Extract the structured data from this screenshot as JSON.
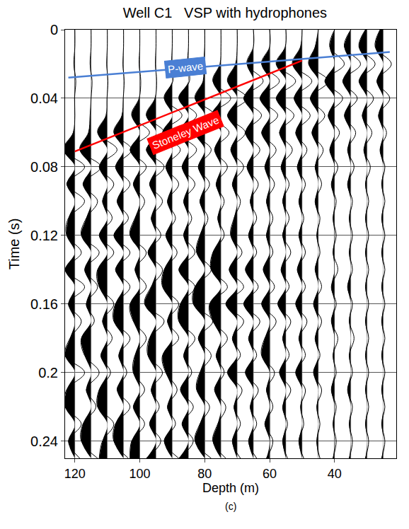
{
  "chart_data": {
    "type": "wiggle",
    "title": "Well C1   VSP with hydrophones",
    "x_label": "Depth (m)",
    "y_label": "Time (s)",
    "caption": "(c)",
    "xlim": [
      123,
      21
    ],
    "xticks": [
      120,
      100,
      80,
      60,
      40
    ],
    "ylim": [
      0.25,
      0
    ],
    "yticks": [
      0,
      0.04,
      0.08,
      0.12,
      0.16,
      0.2,
      0.24
    ],
    "grid": true,
    "color": "#000000",
    "time": [
      0,
      0.01,
      0.02,
      0.03,
      0.04,
      0.05,
      0.06,
      0.07,
      0.08,
      0.09,
      0.1,
      0.11,
      0.12,
      0.13,
      0.14,
      0.15,
      0.16,
      0.17,
      0.18,
      0.19,
      0.2,
      0.21,
      0.22,
      0.23,
      0.24,
      0.25
    ],
    "traces": [
      {
        "depth": 120,
        "values": [
          0,
          0,
          0.3,
          -0.3,
          0.1,
          0,
          0.5,
          3.5,
          -3,
          2.5,
          -3,
          2,
          2.5,
          -2,
          3,
          -3,
          2,
          -2,
          1.5,
          3,
          -3,
          2.5,
          3,
          -2,
          2,
          -1.5
        ]
      },
      {
        "depth": 115,
        "values": [
          0,
          0,
          0.3,
          -0.3,
          0,
          0.3,
          0.8,
          3.5,
          -3,
          2.5,
          -2,
          1.5,
          3,
          -2.5,
          2,
          -2,
          1.5,
          -1,
          3,
          2,
          -2.5,
          1.5,
          -1.5,
          2.5,
          3,
          -2
        ]
      },
      {
        "depth": 110,
        "values": [
          0,
          0,
          0.2,
          -0.2,
          0.1,
          0.4,
          3,
          -3,
          2.5,
          -2,
          1.5,
          -1.5,
          2.5,
          -2,
          3,
          2.5,
          -2,
          1.5,
          -1.5,
          2,
          -1,
          2.5,
          3,
          -2,
          1.5,
          2.5
        ]
      },
      {
        "depth": 105,
        "values": [
          0,
          0,
          0.2,
          -0.2,
          0.1,
          0.5,
          3,
          -2.5,
          2.5,
          -2,
          2,
          -1.5,
          3,
          -2,
          2.5,
          -2,
          2.5,
          3,
          -2,
          1.5,
          -1,
          2,
          -2,
          2.5,
          3,
          -1.5
        ]
      },
      {
        "depth": 100,
        "values": [
          0,
          0,
          0.2,
          -0.3,
          0.2,
          2.5,
          -3,
          3,
          -2,
          2,
          -1.5,
          1.5,
          3,
          -2,
          1.5,
          -2,
          3,
          2,
          -2,
          1.5,
          2,
          -1.5,
          2,
          -1.5,
          2.5,
          3
        ]
      },
      {
        "depth": 95,
        "values": [
          0,
          0,
          0.2,
          -0.2,
          0.3,
          3,
          -2.5,
          3,
          -2.5,
          2,
          -2,
          1.5,
          -1.5,
          2.5,
          -2,
          1.5,
          3.5,
          -2.5,
          2,
          2.5,
          -2,
          1.5,
          -1,
          2,
          -1.5,
          3
        ]
      },
      {
        "depth": 90,
        "values": [
          0,
          0,
          0.2,
          -0.2,
          2.5,
          -3,
          3,
          -2.5,
          2,
          -2,
          1.5,
          -1,
          2,
          -1.5,
          2.5,
          3,
          -2,
          1.5,
          -2,
          3,
          2,
          -1.5,
          1.5,
          -1,
          2.5,
          -2
        ]
      },
      {
        "depth": 85,
        "values": [
          0,
          0,
          0.3,
          -0.3,
          3,
          -2.5,
          3,
          -2.5,
          2,
          -2,
          1.5,
          -1,
          1.5,
          -2,
          3,
          -2,
          2.5,
          3,
          -2,
          1.5,
          -1,
          2.5,
          -1.5,
          2,
          -1.5,
          3
        ]
      },
      {
        "depth": 80,
        "values": [
          0,
          0,
          0.3,
          0.5,
          3,
          -3,
          3,
          -2,
          2,
          -1.5,
          1.5,
          -1,
          1.5,
          2.5,
          -2,
          3,
          3.5,
          -2.5,
          2,
          -2,
          1.5,
          2.5,
          -1.5,
          1.5,
          3,
          -2
        ]
      },
      {
        "depth": 75,
        "values": [
          0,
          0,
          0.3,
          2.5,
          -3,
          3,
          -2.5,
          2,
          -2,
          1.5,
          -1,
          1,
          -1,
          2.5,
          3,
          -2,
          3.5,
          2.5,
          -2,
          1.5,
          -1,
          2,
          -1.5,
          1,
          2.5,
          -1.5
        ]
      },
      {
        "depth": 70,
        "values": [
          0,
          0,
          0.5,
          3,
          -3,
          3,
          -2.5,
          2,
          -2,
          1.5,
          -1,
          1,
          2,
          -1.5,
          2.5,
          -2,
          3.5,
          -2,
          1.5,
          -1,
          3,
          -1.5,
          1,
          -1,
          1.5,
          -1
        ]
      },
      {
        "depth": 65,
        "values": [
          0,
          0,
          2,
          -3,
          3,
          -2.5,
          2.5,
          -2,
          2,
          -1.5,
          1,
          -1,
          1.5,
          -1,
          2.5,
          -1.5,
          3,
          -2,
          1.5,
          -1,
          2.5,
          -1.5,
          1,
          -1,
          1.5,
          -1
        ]
      },
      {
        "depth": 60,
        "values": [
          0,
          0,
          2.5,
          -3,
          3,
          -2.5,
          2.5,
          -2,
          1.5,
          -1.5,
          1,
          -1,
          1,
          -1,
          2,
          -1.5,
          2.5,
          -2,
          1.5,
          2.5,
          -1.5,
          1,
          -1,
          1.5,
          -1,
          1
        ]
      },
      {
        "depth": 55,
        "values": [
          0,
          0.2,
          3,
          -3,
          3,
          -2.5,
          2,
          -2,
          1.5,
          -1,
          1,
          -1,
          1,
          -1.5,
          1.5,
          -1,
          2.5,
          -1.5,
          1,
          -1,
          2,
          -1.5,
          1,
          -0.5,
          1,
          -0.5
        ]
      },
      {
        "depth": 50,
        "values": [
          0,
          0.5,
          3,
          -3,
          2.5,
          -2.5,
          2,
          -1.5,
          1.5,
          -1,
          1,
          -0.5,
          1,
          -1,
          1.5,
          -1,
          2,
          -1.5,
          1,
          -1,
          2,
          -1,
          0.5,
          -0.5,
          1,
          -0.5
        ]
      },
      {
        "depth": 45,
        "values": [
          0,
          1,
          3,
          -3,
          2.5,
          -2,
          2,
          -1.5,
          1,
          -1,
          1,
          -0.5,
          0.5,
          -0.5,
          1,
          -1,
          1.5,
          -1,
          1,
          -0.5,
          1.5,
          -1,
          0.5,
          -0.5,
          0.5,
          -0.5
        ]
      },
      {
        "depth": 40,
        "values": [
          0,
          1.5,
          -3,
          3,
          -2.5,
          2,
          -1.5,
          1.5,
          -1,
          1,
          -0.5,
          0.5,
          -0.5,
          0.5,
          -1,
          1,
          -0.5,
          1,
          -1,
          0.5,
          -0.5,
          1,
          -0.5,
          0.5,
          -0.5,
          0.5
        ]
      },
      {
        "depth": 35,
        "values": [
          0,
          2,
          -3,
          2.5,
          -2,
          2,
          -1.5,
          1,
          -1,
          1,
          -0.5,
          0.5,
          -0.5,
          0.5,
          -0.5,
          1,
          -0.5,
          0.5,
          -1,
          0.5,
          -0.5,
          1,
          -0.5,
          0.5,
          -0.5,
          0.5
        ]
      },
      {
        "depth": 30,
        "values": [
          0.5,
          2.5,
          -2.5,
          2.5,
          -2,
          1.5,
          -1.5,
          1,
          -1,
          0.5,
          -0.5,
          0.5,
          -0.5,
          0.5,
          -0.5,
          0.5,
          -0.5,
          0.5,
          -0.5,
          0.5,
          -0.5,
          0.5,
          -0.5,
          0.5,
          -0.5,
          0.5
        ]
      },
      {
        "depth": 25,
        "values": [
          1,
          2.5,
          -2.5,
          2,
          -2,
          1.5,
          -1,
          1,
          -0.5,
          0.5,
          -0.5,
          0.5,
          -0.5,
          0.5,
          -0.5,
          0.5,
          -0.5,
          0.5,
          -0.5,
          0.5,
          -0.5,
          0.5,
          -0.5,
          0.5,
          -0.5,
          0.5
        ]
      }
    ],
    "lines": [
      {
        "label": "P-wave",
        "color": "#4a7fd4",
        "x": [
          122,
          23
        ],
        "y": [
          0.028,
          0.013
        ],
        "label_x": 86,
        "label_y": 0.022
      },
      {
        "label": "Stoneley Wave",
        "color": "#ff0000",
        "x": [
          120,
          50
        ],
        "y": [
          0.071,
          0.018
        ],
        "label_x": 86,
        "label_y": 0.06
      }
    ]
  }
}
